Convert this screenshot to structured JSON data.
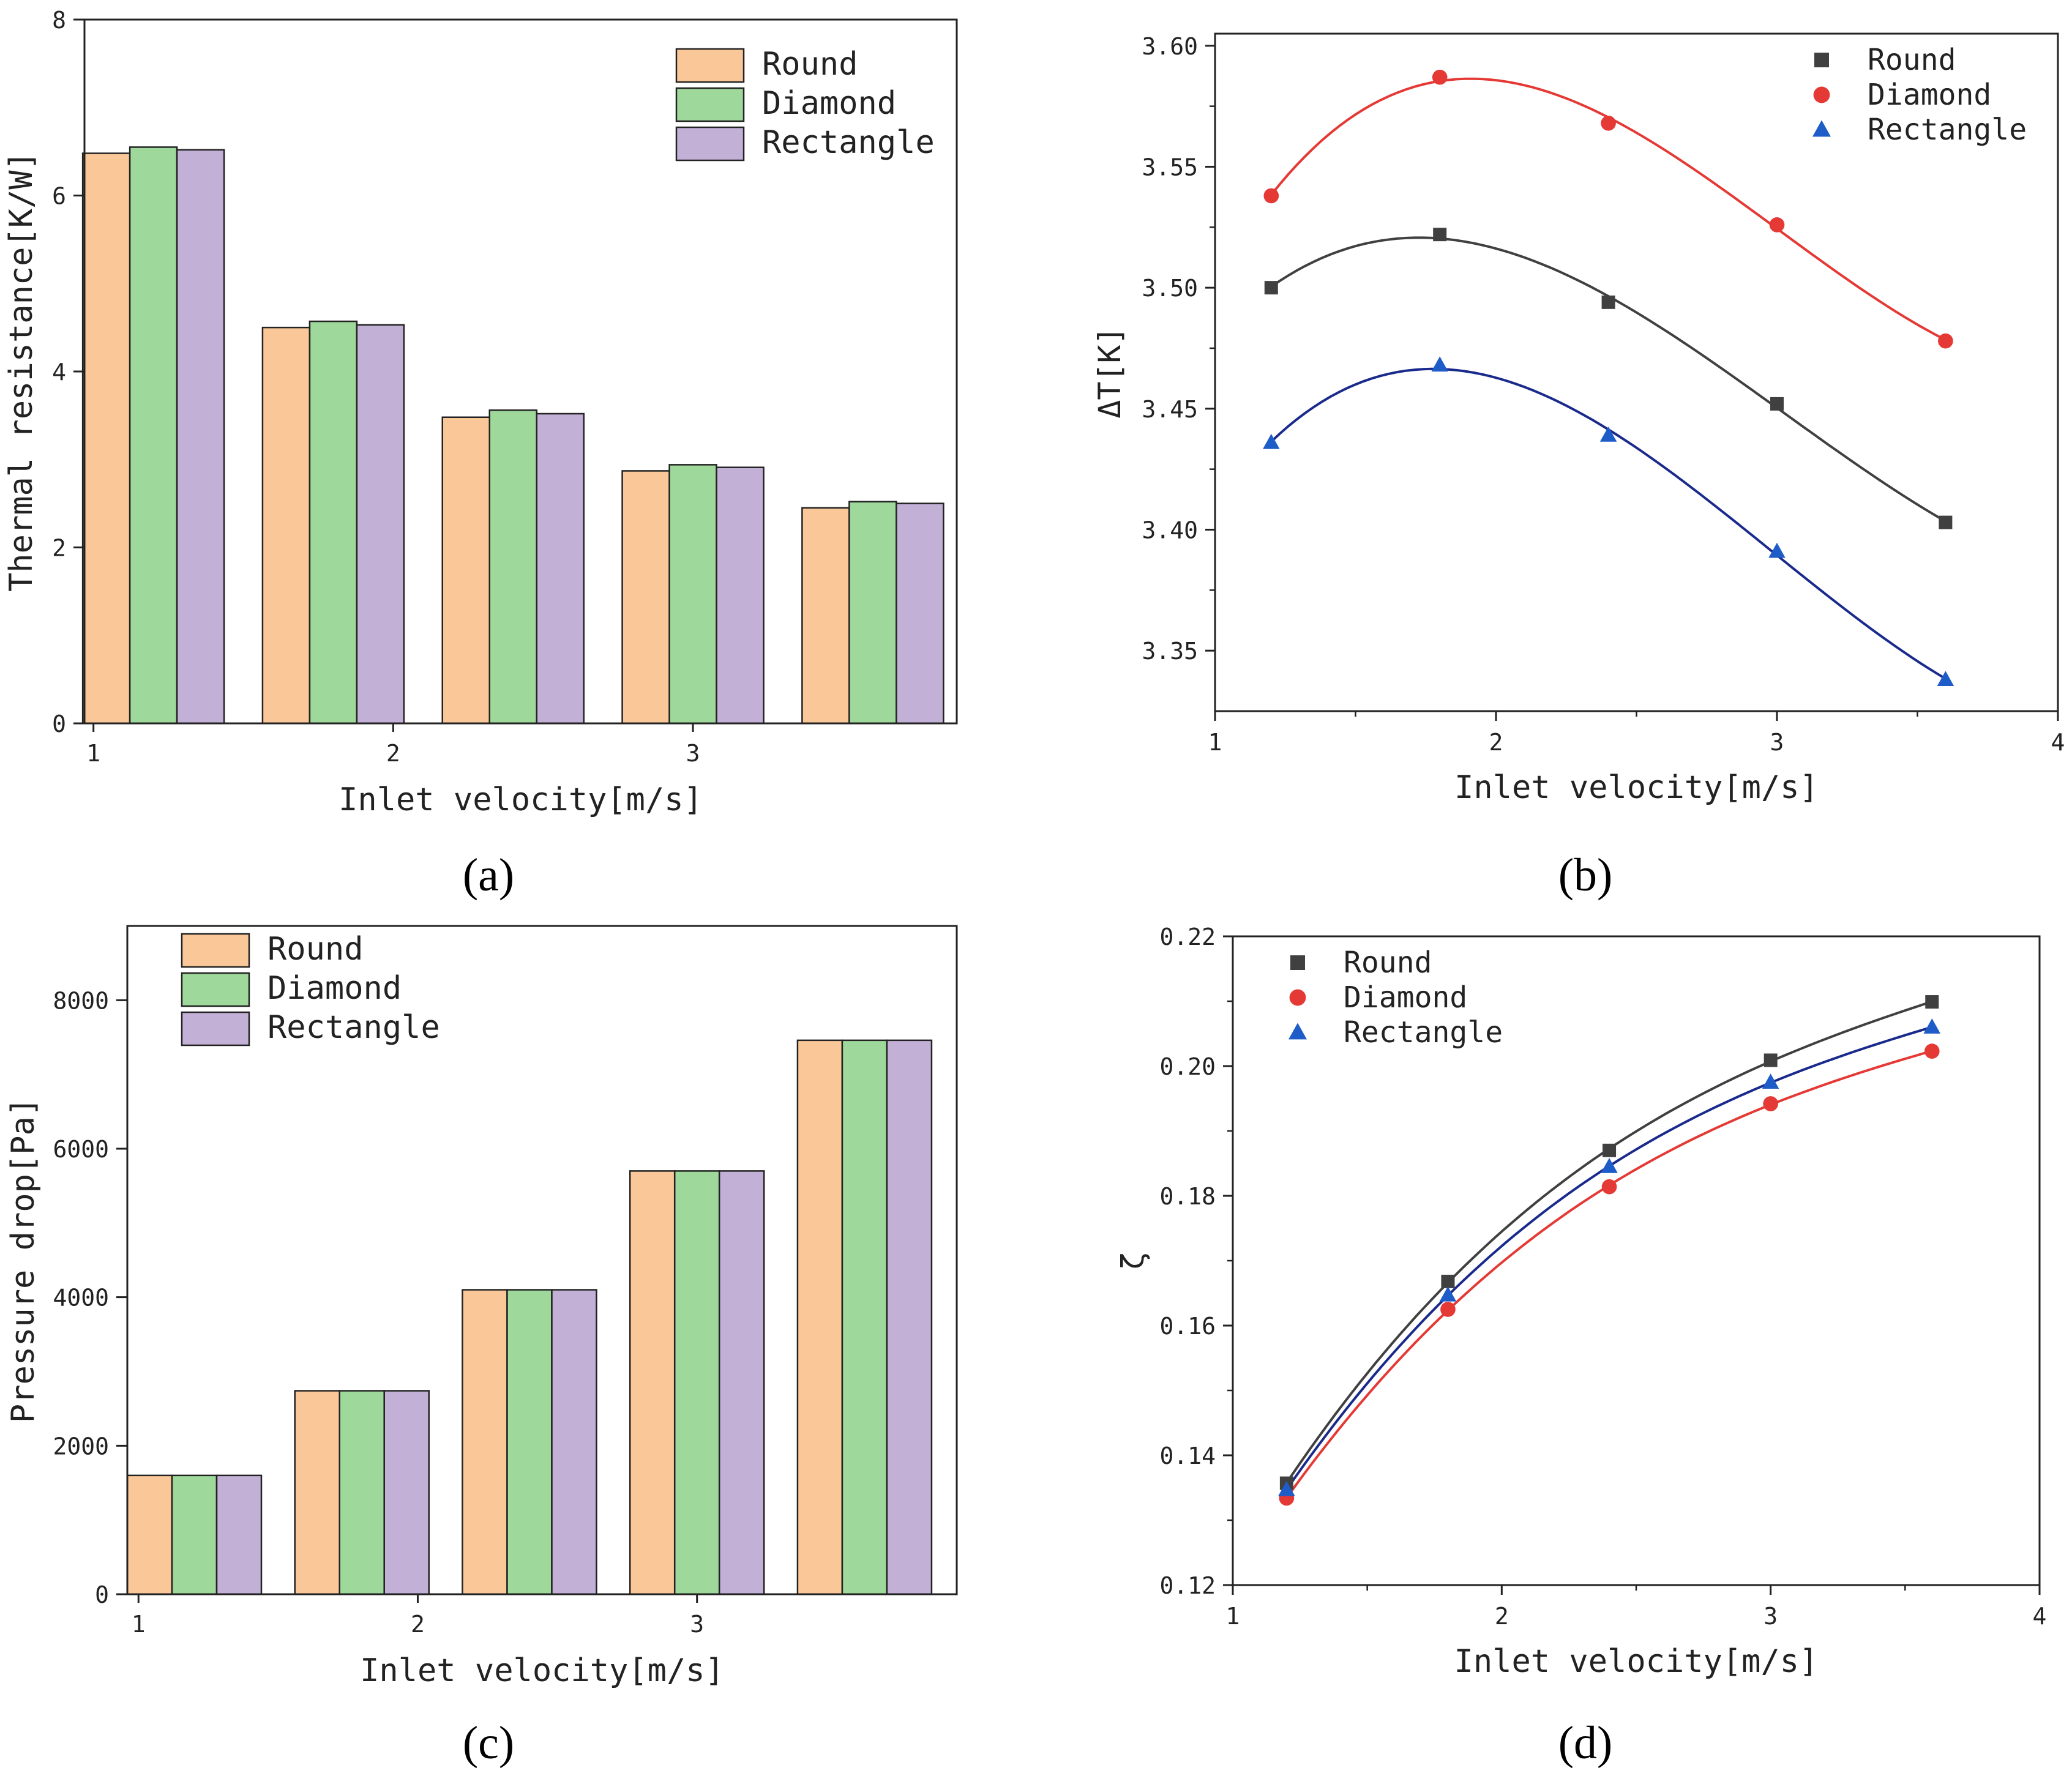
{
  "colors": {
    "round_bar": "#FAC898",
    "diamond_bar": "#9ED89A",
    "rectangle_bar": "#C3B0D6",
    "round_line": "#404040",
    "diamond_line": "#E53935",
    "rectangle_line": "#1E5CC8",
    "rectangle_curve_b": "#1A2A8C"
  },
  "panel_labels": [
    "(a)",
    "(b)",
    "(c)",
    "(d)"
  ],
  "chart_data": [
    {
      "type": "bar",
      "panel": "(a)",
      "xlabel": "Inlet velocity[m/s]",
      "ylabel": "Thermal resistance[K/W]",
      "xticks": [
        "1",
        "2",
        "3"
      ],
      "yticks": [
        "0",
        "2",
        "4",
        "6",
        "8"
      ],
      "ylim": [
        0,
        8
      ],
      "legend_position": "top-right",
      "groups": [
        1.2,
        1.8,
        2.4,
        3.0,
        3.6
      ],
      "series": [
        {
          "name": "Round",
          "color": "#FAC898",
          "values": [
            6.48,
            4.5,
            3.48,
            2.87,
            2.45
          ]
        },
        {
          "name": "Diamond",
          "color": "#9ED89A",
          "values": [
            6.55,
            4.57,
            3.56,
            2.94,
            2.52
          ]
        },
        {
          "name": "Rectangle",
          "color": "#C3B0D6",
          "values": [
            6.52,
            4.53,
            3.52,
            2.91,
            2.5
          ]
        }
      ]
    },
    {
      "type": "line",
      "panel": "(b)",
      "xlabel": "Inlet velocity[m/s]",
      "ylabel": "ΔT[K]",
      "xticks": [
        "1",
        "2",
        "3",
        "4"
      ],
      "yticks": [
        "3.35",
        "3.40",
        "3.45",
        "3.50",
        "3.55",
        "3.60"
      ],
      "xlim": [
        1,
        4
      ],
      "ylim": [
        3.325,
        3.605
      ],
      "legend_position": "top-right",
      "x": [
        1.2,
        1.8,
        2.4,
        3.0,
        3.6
      ],
      "series": [
        {
          "name": "Round",
          "marker": "square",
          "color": "#404040",
          "curve_color": "#404040",
          "values": [
            3.5,
            3.522,
            3.494,
            3.452,
            3.403
          ]
        },
        {
          "name": "Diamond",
          "marker": "circle",
          "color": "#E53935",
          "curve_color": "#E53935",
          "values": [
            3.538,
            3.587,
            3.568,
            3.526,
            3.478
          ]
        },
        {
          "name": "Rectangle",
          "marker": "triangle",
          "color": "#1E5CC8",
          "curve_color": "#1A2A8C",
          "values": [
            3.436,
            3.468,
            3.439,
            3.391,
            3.338
          ]
        }
      ]
    },
    {
      "type": "bar",
      "panel": "(c)",
      "xlabel": "Inlet velocity[m/s]",
      "ylabel": "Pressure drop[Pa]",
      "xticks": [
        "1",
        "2",
        "3"
      ],
      "yticks": [
        "0",
        "2000",
        "4000",
        "6000",
        "8000"
      ],
      "ylim": [
        0,
        9000
      ],
      "legend_position": "top-left",
      "groups": [
        1.2,
        1.8,
        2.4,
        3.0,
        3.6
      ],
      "series": [
        {
          "name": "Round",
          "color": "#FAC898",
          "values": [
            1600,
            2740,
            4100,
            5700,
            7460
          ]
        },
        {
          "name": "Diamond",
          "color": "#9ED89A",
          "values": [
            1600,
            2740,
            4100,
            5700,
            7460
          ]
        },
        {
          "name": "Rectangle",
          "color": "#C3B0D6",
          "values": [
            1600,
            2740,
            4100,
            5700,
            7460
          ]
        }
      ]
    },
    {
      "type": "line",
      "panel": "(d)",
      "xlabel": "Inlet velocity[m/s]",
      "ylabel": "ζ",
      "xticks": [
        "1",
        "2",
        "3",
        "4"
      ],
      "yticks": [
        "0.12",
        "0.14",
        "0.16",
        "0.18",
        "0.20",
        "0.22"
      ],
      "xlim": [
        1,
        4
      ],
      "ylim": [
        0.12,
        0.22
      ],
      "legend_position": "top-left",
      "x": [
        1.2,
        1.8,
        2.4,
        3.0,
        3.6
      ],
      "series": [
        {
          "name": "Round",
          "marker": "square",
          "color": "#404040",
          "curve_color": "#404040",
          "values": [
            0.1357,
            0.1668,
            0.187,
            0.2009,
            0.2099
          ]
        },
        {
          "name": "Diamond",
          "marker": "circle",
          "color": "#E53935",
          "curve_color": "#E53935",
          "values": [
            0.1334,
            0.1625,
            0.1814,
            0.1942,
            0.2023
          ]
        },
        {
          "name": "Rectangle",
          "marker": "triangle",
          "color": "#1E5CC8",
          "curve_color": "#1A2A8C",
          "values": [
            0.1347,
            0.1647,
            0.1845,
            0.1975,
            0.206
          ]
        }
      ]
    }
  ]
}
